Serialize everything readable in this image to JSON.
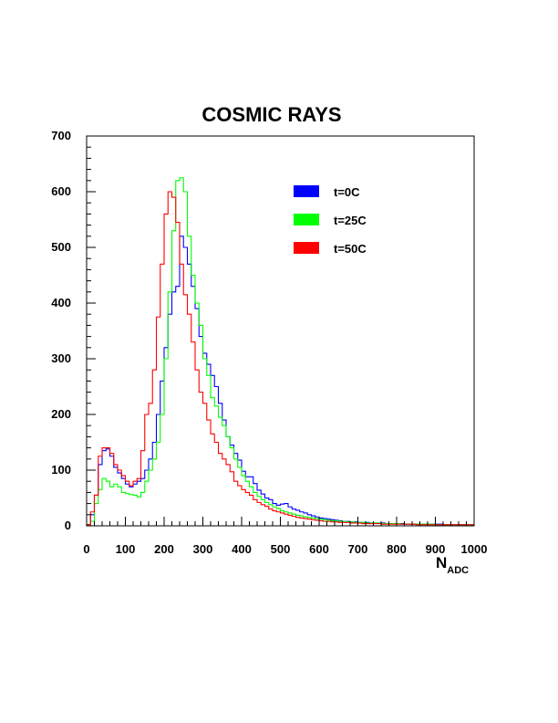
{
  "chart_data": {
    "type": "line",
    "title": "COSMIC RAYS",
    "xlabel": "N",
    "xlabel_subscript": "ADC",
    "ylabel": "",
    "xlim": [
      0,
      1000
    ],
    "ylim": [
      0,
      700
    ],
    "xticks": [
      "0",
      "100",
      "200",
      "300",
      "400",
      "500",
      "600",
      "700",
      "800",
      "900",
      "1000"
    ],
    "yticks": [
      "0",
      "100",
      "200",
      "300",
      "400",
      "500",
      "600",
      "700"
    ],
    "grid": false,
    "legend_position": "top-right",
    "bin_width": 10,
    "x": [
      0,
      10,
      20,
      30,
      40,
      50,
      60,
      70,
      80,
      90,
      100,
      110,
      120,
      130,
      140,
      150,
      160,
      170,
      180,
      190,
      200,
      210,
      220,
      230,
      240,
      250,
      260,
      270,
      280,
      290,
      300,
      310,
      320,
      330,
      340,
      350,
      360,
      370,
      380,
      390,
      400,
      410,
      420,
      430,
      440,
      450,
      460,
      470,
      480,
      490,
      500,
      510,
      520,
      530,
      540,
      550,
      560,
      570,
      580,
      590,
      600,
      610,
      620,
      630,
      640,
      650,
      660,
      670,
      680,
      690,
      700,
      710,
      720,
      730,
      740,
      750,
      760,
      770,
      780,
      790,
      800,
      810,
      820,
      830,
      840,
      850,
      860,
      870,
      880,
      890,
      900,
      910,
      920,
      930,
      940,
      950,
      960,
      970,
      980,
      990
    ],
    "series": [
      {
        "name": "t=0C",
        "color": "#0000ff",
        "values": [
          2,
          20,
          55,
          110,
          135,
          138,
          125,
          105,
          95,
          85,
          75,
          70,
          75,
          80,
          85,
          100,
          120,
          150,
          200,
          260,
          320,
          380,
          420,
          430,
          520,
          500,
          470,
          430,
          390,
          340,
          310,
          290,
          270,
          250,
          220,
          190,
          160,
          145,
          130,
          118,
          98,
          88,
          88,
          76,
          64,
          57,
          50,
          47,
          40,
          37,
          39,
          40,
          34,
          30,
          28,
          25,
          23,
          20,
          18,
          16,
          14,
          13,
          12,
          11,
          10,
          9,
          8,
          8,
          7,
          7,
          6,
          6,
          6,
          5,
          5,
          5,
          5,
          4,
          4,
          4,
          4,
          4,
          3,
          3,
          3,
          3,
          3,
          3,
          3,
          3,
          3,
          3,
          2,
          2,
          2,
          2,
          2,
          2,
          2,
          2
        ]
      },
      {
        "name": "t=25C",
        "color": "#00ff00",
        "values": [
          2,
          8,
          40,
          65,
          85,
          80,
          70,
          75,
          70,
          60,
          58,
          56,
          55,
          52,
          60,
          80,
          100,
          120,
          150,
          200,
          300,
          420,
          530,
          620,
          625,
          600,
          520,
          450,
          400,
          360,
          300,
          270,
          230,
          215,
          195,
          180,
          160,
          140,
          120,
          105,
          90,
          80,
          70,
          60,
          53,
          47,
          42,
          38,
          34,
          31,
          27,
          25,
          23,
          21,
          19,
          18,
          16,
          15,
          14,
          13,
          12,
          11,
          10,
          9,
          9,
          8,
          8,
          7,
          7,
          6,
          6,
          6,
          5,
          5,
          5,
          5,
          4,
          4,
          4,
          4,
          4,
          3,
          3,
          3,
          3,
          3,
          3,
          3,
          3,
          3,
          2,
          2,
          2,
          2,
          2,
          2,
          2,
          2,
          2,
          2
        ]
      },
      {
        "name": "t=50C",
        "color": "#ff0000",
        "values": [
          2,
          25,
          55,
          125,
          140,
          140,
          130,
          110,
          100,
          90,
          80,
          72,
          80,
          85,
          135,
          200,
          220,
          280,
          375,
          470,
          560,
          600,
          590,
          545,
          470,
          415,
          380,
          330,
          280,
          240,
          220,
          190,
          165,
          150,
          130,
          120,
          110,
          97,
          80,
          72,
          65,
          60,
          55,
          47,
          42,
          38,
          35,
          30,
          27,
          25,
          23,
          21,
          19,
          17,
          15,
          14,
          13,
          12,
          11,
          10,
          9,
          8,
          8,
          7,
          7,
          6,
          6,
          6,
          5,
          5,
          5,
          4,
          4,
          4,
          4,
          4,
          3,
          3,
          3,
          3,
          3,
          3,
          3,
          3,
          3,
          2,
          2,
          2,
          2,
          2,
          2,
          2,
          2,
          2,
          2,
          2,
          2,
          2,
          2,
          2
        ]
      }
    ]
  }
}
